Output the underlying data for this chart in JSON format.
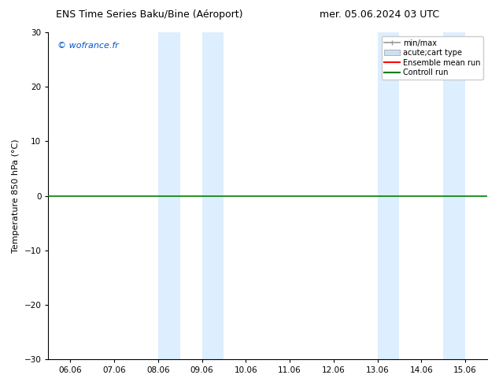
{
  "title_left": "ENS Time Series Baku/Bine (Aéroport)",
  "title_right": "mer. 05.06.2024 03 UTC",
  "ylabel": "Temperature 850 hPa (°C)",
  "ylim": [
    -30,
    30
  ],
  "yticks": [
    -30,
    -20,
    -10,
    0,
    10,
    20,
    30
  ],
  "xlabel_ticks": [
    "06.06",
    "07.06",
    "08.06",
    "09.06",
    "10.06",
    "11.06",
    "12.06",
    "13.06",
    "14.06",
    "15.06"
  ],
  "x_values": [
    0,
    1,
    2,
    3,
    4,
    5,
    6,
    7,
    8,
    9
  ],
  "background_color": "#ffffff",
  "plot_bg_color": "#ffffff",
  "watermark": "© wofrance.fr",
  "watermark_color": "#0055cc",
  "shaded_regions": [
    {
      "xstart": 2.0,
      "xend": 2.5,
      "color": "#ddeeff"
    },
    {
      "xstart": 3.0,
      "xend": 3.5,
      "color": "#ddeeff"
    },
    {
      "xstart": 7.0,
      "xend": 7.5,
      "color": "#ddeeff"
    },
    {
      "xstart": 8.5,
      "xend": 9.0,
      "color": "#ddeeff"
    }
  ],
  "hline_y": 0,
  "hline_color": "#008000",
  "hline_lw": 1.2,
  "legend_labels": [
    "min/max",
    "acute;cart type",
    "Ensemble mean run",
    "Controll run"
  ],
  "legend_colors": [
    "#999999",
    "#cce0f0",
    "#ff0000",
    "#008000"
  ],
  "border_color": "#000000",
  "font_size_title": 9,
  "font_size_tick": 7.5,
  "font_size_ylabel": 8,
  "font_size_watermark": 8,
  "font_size_legend": 7
}
